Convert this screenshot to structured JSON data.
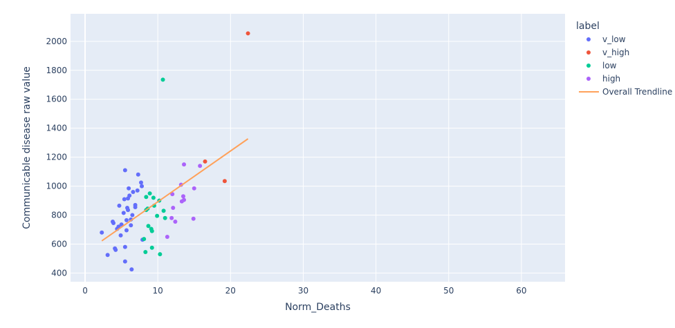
{
  "chart_data": {
    "type": "scatter",
    "xlabel": "Norm_Deaths",
    "ylabel": "Communicable disease raw value",
    "xlim": [
      -2,
      66
    ],
    "ylim": [
      340,
      2190
    ],
    "x_ticks": [
      0,
      10,
      20,
      30,
      40,
      50,
      60
    ],
    "y_ticks": [
      400,
      600,
      800,
      1000,
      1200,
      1400,
      1600,
      1800,
      2000
    ],
    "grid": true,
    "legend": {
      "title": "label",
      "placement": "right",
      "entries": [
        "v_low",
        "v_high",
        "low",
        "high",
        "Overall Trendline"
      ]
    },
    "series": [
      {
        "name": "v_low",
        "color": "#636efa",
        "points": [
          [
            2.3,
            680
          ],
          [
            3.1,
            525
          ],
          [
            3.8,
            755
          ],
          [
            3.9,
            745
          ],
          [
            4.1,
            570
          ],
          [
            4.2,
            560
          ],
          [
            4.4,
            705
          ],
          [
            4.6,
            720
          ],
          [
            4.7,
            865
          ],
          [
            4.9,
            660
          ],
          [
            5.0,
            735
          ],
          [
            5.3,
            815
          ],
          [
            5.4,
            910
          ],
          [
            5.5,
            1110
          ],
          [
            5.5,
            580
          ],
          [
            5.5,
            480
          ],
          [
            5.7,
            765
          ],
          [
            5.7,
            695
          ],
          [
            5.8,
            850
          ],
          [
            5.9,
            915
          ],
          [
            5.9,
            835
          ],
          [
            6.0,
            985
          ],
          [
            6.1,
            935
          ],
          [
            6.3,
            770
          ],
          [
            6.3,
            730
          ],
          [
            6.4,
            425
          ],
          [
            6.5,
            800
          ],
          [
            6.6,
            960
          ],
          [
            6.9,
            870
          ],
          [
            6.9,
            855
          ],
          [
            7.2,
            970
          ],
          [
            7.3,
            1080
          ],
          [
            7.7,
            1025
          ],
          [
            7.8,
            1000
          ],
          [
            7.9,
            630
          ]
        ]
      },
      {
        "name": "v_high",
        "color": "#ef553b",
        "points": [
          [
            16.5,
            1170
          ],
          [
            19.2,
            1035
          ],
          [
            22.4,
            2055
          ]
        ]
      },
      {
        "name": "low",
        "color": "#00cc96",
        "points": [
          [
            8.1,
            635
          ],
          [
            8.3,
            545
          ],
          [
            8.4,
            925
          ],
          [
            8.4,
            835
          ],
          [
            8.6,
            845
          ],
          [
            8.7,
            725
          ],
          [
            8.9,
            950
          ],
          [
            9.1,
            705
          ],
          [
            9.2,
            575
          ],
          [
            9.2,
            690
          ],
          [
            9.4,
            920
          ],
          [
            9.5,
            865
          ],
          [
            9.9,
            795
          ],
          [
            10.2,
            900
          ],
          [
            10.3,
            530
          ],
          [
            10.7,
            1735
          ],
          [
            10.8,
            830
          ],
          [
            11.0,
            780
          ]
        ]
      },
      {
        "name": "high",
        "color": "#ab63fa",
        "points": [
          [
            11.3,
            650
          ],
          [
            11.9,
            780
          ],
          [
            12.0,
            945
          ],
          [
            12.1,
            850
          ],
          [
            12.4,
            755
          ],
          [
            13.2,
            1010
          ],
          [
            13.3,
            895
          ],
          [
            13.5,
            930
          ],
          [
            13.6,
            1150
          ],
          [
            13.6,
            905
          ],
          [
            14.9,
            775
          ],
          [
            15.0,
            985
          ],
          [
            15.8,
            1140
          ]
        ]
      }
    ],
    "trendline": {
      "name": "Overall Trendline",
      "color": "#ffa15a",
      "points": [
        [
          2.3,
          622
        ],
        [
          22.4,
          1327
        ]
      ]
    }
  }
}
